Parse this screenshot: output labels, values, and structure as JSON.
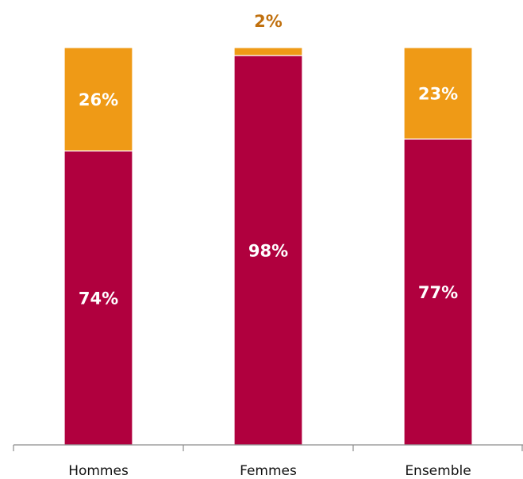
{
  "chart_data": {
    "type": "bar",
    "stacked": true,
    "categories": [
      "Hommes",
      "Femmes",
      "Ensemble"
    ],
    "series": [
      {
        "values": [
          74,
          98,
          77
        ],
        "labels": [
          "74%",
          "98%",
          "77%"
        ],
        "color": "#b0003e",
        "label_color": "#ffffff"
      },
      {
        "values": [
          26,
          2,
          23
        ],
        "labels": [
          "26%",
          "2%",
          "23%"
        ],
        "color": "#ef9a16",
        "label_color": "#ffffff",
        "small_label_color": "#c0700e"
      }
    ],
    "ylim": [
      0,
      100
    ],
    "grid": false,
    "legend": "none",
    "title": "",
    "xlabel": "",
    "ylabel": ""
  }
}
